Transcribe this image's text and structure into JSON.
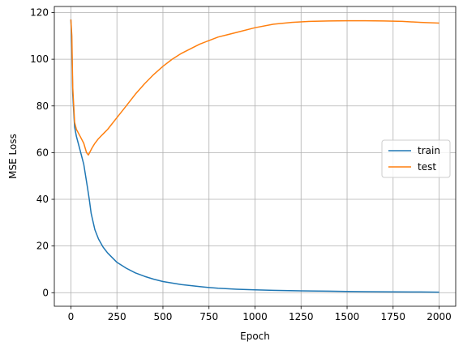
{
  "chart_data": {
    "type": "line",
    "xlabel": "Epoch",
    "ylabel": "MSE Loss",
    "xlim": [
      -90,
      2090
    ],
    "ylim": [
      -5.8,
      122.6
    ],
    "xticks": [
      0,
      250,
      500,
      750,
      1000,
      1250,
      1500,
      1750,
      2000
    ],
    "yticks": [
      0,
      20,
      40,
      60,
      80,
      100,
      120
    ],
    "grid": true,
    "legend_position": "center-right",
    "series": [
      {
        "name": "train",
        "color": "#1f77b4",
        "x": [
          0,
          5,
          10,
          20,
          30,
          50,
          70,
          90,
          100,
          110,
          130,
          150,
          175,
          200,
          250,
          300,
          350,
          400,
          450,
          500,
          600,
          700,
          750,
          800,
          900,
          1000,
          1100,
          1250,
          1400,
          1500,
          1600,
          1750,
          1900,
          2000
        ],
        "values": [
          117,
          105,
          85,
          71,
          67,
          61,
          55,
          45,
          40,
          34,
          27,
          23,
          19.5,
          17,
          13,
          10.5,
          8.5,
          7,
          5.8,
          4.8,
          3.5,
          2.6,
          2.2,
          1.9,
          1.5,
          1.2,
          1.0,
          0.8,
          0.65,
          0.55,
          0.45,
          0.35,
          0.3,
          0.25
        ]
      },
      {
        "name": "test",
        "color": "#ff7f0e",
        "x": [
          0,
          5,
          10,
          20,
          30,
          50,
          70,
          85,
          95,
          105,
          115,
          130,
          150,
          200,
          250,
          300,
          350,
          400,
          450,
          500,
          550,
          600,
          650,
          700,
          750,
          800,
          850,
          900,
          1000,
          1100,
          1200,
          1300,
          1400,
          1500,
          1600,
          1700,
          1800,
          1900,
          2000
        ],
        "values": [
          117,
          110,
          88,
          73,
          70,
          67,
          64,
          60,
          59,
          60.5,
          62,
          64,
          66,
          70,
          75,
          80,
          85,
          89.5,
          93.5,
          97,
          100,
          102.5,
          104.5,
          106.5,
          108,
          109.5,
          110.5,
          111.5,
          113.5,
          115,
          115.8,
          116.2,
          116.4,
          116.5,
          116.5,
          116.4,
          116.2,
          115.8,
          115.5
        ]
      }
    ]
  }
}
